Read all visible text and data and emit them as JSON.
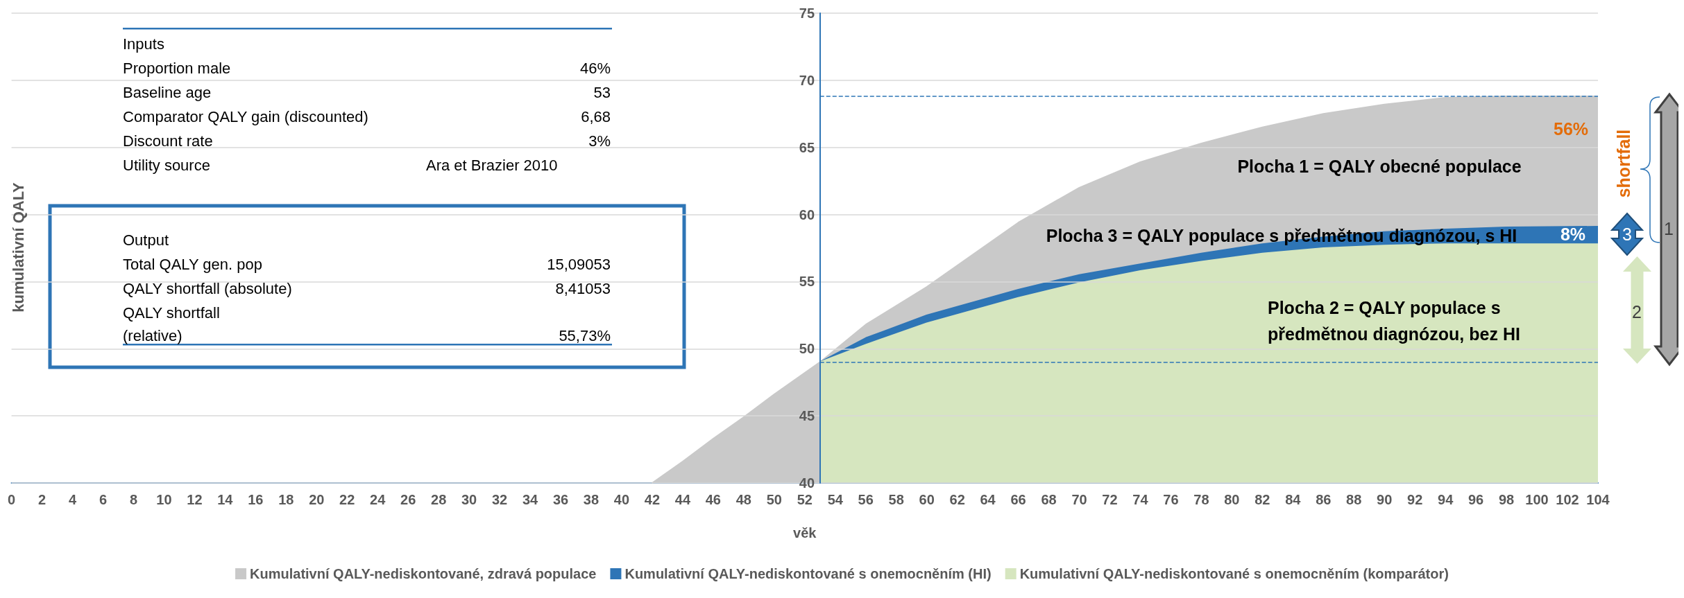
{
  "chart_data": {
    "type": "area",
    "xlabel": "věk",
    "ylabel": "kumulativní QALY",
    "xlim": [
      0,
      104
    ],
    "xticks": [
      0,
      2,
      4,
      6,
      8,
      10,
      12,
      14,
      16,
      18,
      20,
      22,
      24,
      26,
      28,
      30,
      32,
      34,
      36,
      38,
      40,
      42,
      44,
      46,
      48,
      50,
      52,
      54,
      56,
      58,
      60,
      62,
      64,
      66,
      68,
      70,
      72,
      74,
      76,
      78,
      80,
      82,
      84,
      86,
      88,
      90,
      92,
      94,
      96,
      98,
      100,
      102,
      104
    ],
    "ylim": [
      40,
      75
    ],
    "yticks": [
      40,
      45,
      50,
      55,
      60,
      65,
      70,
      75
    ],
    "grid": "y",
    "legend": "bottom",
    "series": [
      {
        "name": "Kumulativní QALY-nediskontované, zdravá populace",
        "color": "#c9c9c9",
        "x": [
          42,
          44,
          46,
          48,
          50,
          53,
          56,
          60,
          66,
          70,
          74,
          78,
          82,
          86,
          90,
          94,
          98,
          104
        ],
        "values": [
          40,
          41.6,
          43.3,
          44.9,
          46.6,
          49,
          51.8,
          54.6,
          59.4,
          62.0,
          63.9,
          65.3,
          66.5,
          67.5,
          68.2,
          68.7,
          68.8,
          68.8
        ]
      },
      {
        "name": "Kumulativní QALY-nediskontované s onemocněním (HI)",
        "color": "#2e75b6",
        "x": [
          53,
          56,
          60,
          66,
          70,
          74,
          78,
          82,
          86,
          90,
          94,
          98,
          104
        ],
        "values": [
          49,
          50.8,
          52.5,
          54.4,
          55.5,
          56.3,
          57.1,
          57.8,
          58.3,
          58.7,
          58.9,
          59.05,
          59.1
        ]
      },
      {
        "name": "Kumulativní QALY-nediskontované s onemocněním (komparátor)",
        "color": "#d6e6bf",
        "x": [
          53,
          56,
          60,
          66,
          70,
          74,
          78,
          82,
          86,
          90,
          94,
          98,
          104
        ],
        "values": [
          49,
          50.3,
          51.9,
          53.8,
          54.9,
          55.8,
          56.5,
          57.1,
          57.5,
          57.7,
          57.8,
          57.8,
          57.8
        ]
      }
    ],
    "ref_lines": [
      {
        "axis": "y",
        "value": 68.8,
        "color": "#2e75b6",
        "line_style": "dashed"
      },
      {
        "axis": "y",
        "value": 49,
        "color": "#2e75b6",
        "line_style": "dashed"
      }
    ],
    "annotations": [
      "Inputs",
      "Proportion male",
      "46%",
      "Baseline age",
      "53",
      "Comparator QALY gain (discounted)",
      "6,68",
      "Discount rate",
      "3%",
      "Utility source",
      "Ara et Brazier 2010",
      "Output",
      "Total QALY gen. pop",
      "15,09053",
      "QALY shortfall (absolute)",
      "8,41053",
      "QALY shortfall",
      "(relative)",
      "55,73%",
      "Plocha 1 = QALY obecné populace",
      "Plocha 3 = QALY populace s předmětnou diagnózou, s HI",
      "Plocha 2 = QALY populace s\npředmětnou diagnózou, bez HI",
      "56%",
      "8%",
      "shortfall",
      "1",
      "3",
      "2"
    ]
  }
}
